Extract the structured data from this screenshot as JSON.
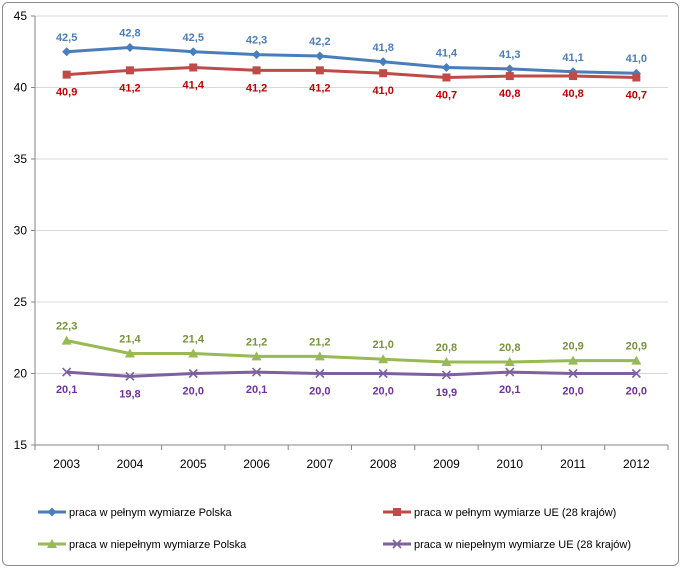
{
  "chart_data": {
    "type": "line",
    "categories": [
      "2003",
      "2004",
      "2005",
      "2006",
      "2007",
      "2008",
      "2009",
      "2010",
      "2011",
      "2012"
    ],
    "ylim": [
      15,
      45
    ],
    "yticks": [
      "15",
      "20",
      "25",
      "30",
      "35",
      "40",
      "45"
    ],
    "grid": true,
    "legend_position": "bottom",
    "series": [
      {
        "name": "praca w pełnym wymiarze Polska",
        "values": [
          42.5,
          42.8,
          42.5,
          42.3,
          42.2,
          41.8,
          41.4,
          41.3,
          41.1,
          41.0
        ],
        "labels": [
          "42,5",
          "42,8",
          "42,5",
          "42,3",
          "42,2",
          "41,8",
          "41,4",
          "41,3",
          "41,1",
          "41,0"
        ],
        "color": "#4a7ebb",
        "label_color": "#4a7ebb",
        "marker": "diamond",
        "label_pos": "above"
      },
      {
        "name": "praca w pełnym wymiarze UE (28 krajów)",
        "values": [
          40.9,
          41.2,
          41.4,
          41.2,
          41.2,
          41.0,
          40.7,
          40.8,
          40.8,
          40.7
        ],
        "labels": [
          "40,9",
          "41,2",
          "41,4",
          "41,2",
          "41,2",
          "41,0",
          "40,7",
          "40,8",
          "40,8",
          "40,7"
        ],
        "color": "#be4b48",
        "label_color": "#c00000",
        "marker": "square",
        "label_pos": "below"
      },
      {
        "name": "praca w niepełnym wymiarze Polska",
        "values": [
          22.3,
          21.4,
          21.4,
          21.2,
          21.2,
          21.0,
          20.8,
          20.8,
          20.9,
          20.9
        ],
        "labels": [
          "22,3",
          "21,4",
          "21,4",
          "21,2",
          "21,2",
          "21,0",
          "20,8",
          "20,8",
          "20,9",
          "20,9"
        ],
        "color": "#98b954",
        "label_color": "#77933c",
        "marker": "triangle",
        "label_pos": "above"
      },
      {
        "name": "praca w niepełnym wymiarze UE (28 krajów)",
        "values": [
          20.1,
          19.8,
          20.0,
          20.1,
          20.0,
          20.0,
          19.9,
          20.1,
          20.0,
          20.0
        ],
        "labels": [
          "20,1",
          "19,8",
          "20,0",
          "20,1",
          "20,0",
          "20,0",
          "19,9",
          "20,1",
          "20,0",
          "20,0"
        ],
        "color": "#7d60a0",
        "label_color": "#7030a0",
        "marker": "x",
        "label_pos": "below"
      }
    ]
  }
}
